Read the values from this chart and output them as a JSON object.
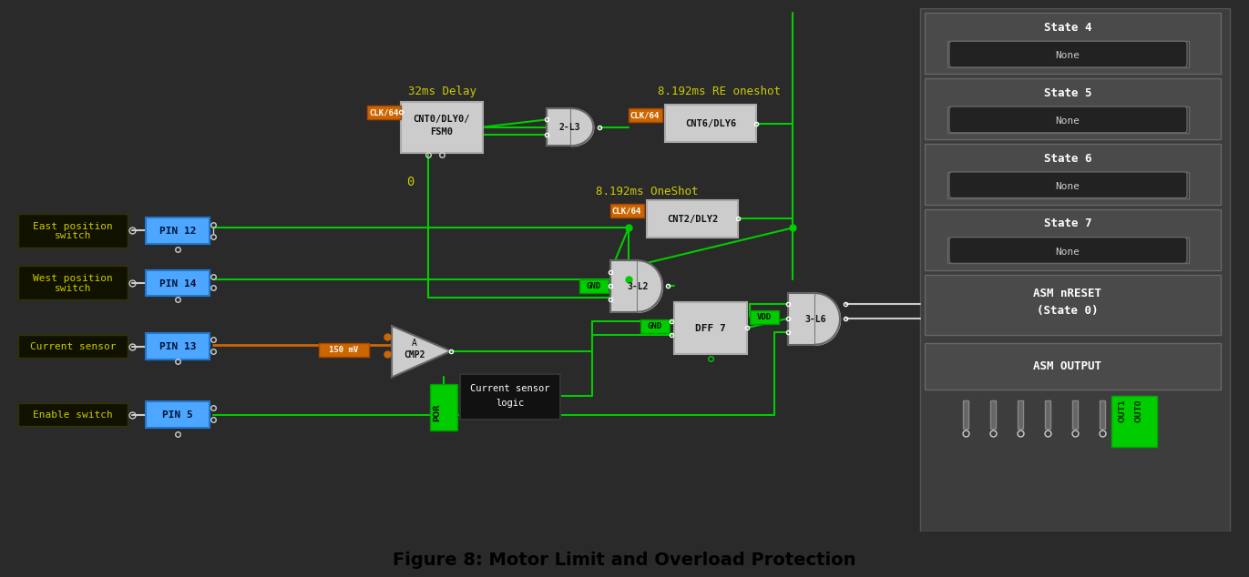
{
  "bg_color": "#2a2a2a",
  "title": "Figure 8: Motor Limit and Overload Protection",
  "title_fontsize": 14,
  "green": "#00cc00",
  "orange": "#cc6600",
  "yellow": "#cccc00",
  "blue_pin": "#4da6ff",
  "white": "#ffffff",
  "gray_box": "#888888",
  "light_gray": "#cccccc",
  "dark_gray": "#444444",
  "med_gray": "#666666",
  "panel_gray": "#555555",
  "label_bg": "#1a1a00",
  "pin_bg": "#3399ff"
}
